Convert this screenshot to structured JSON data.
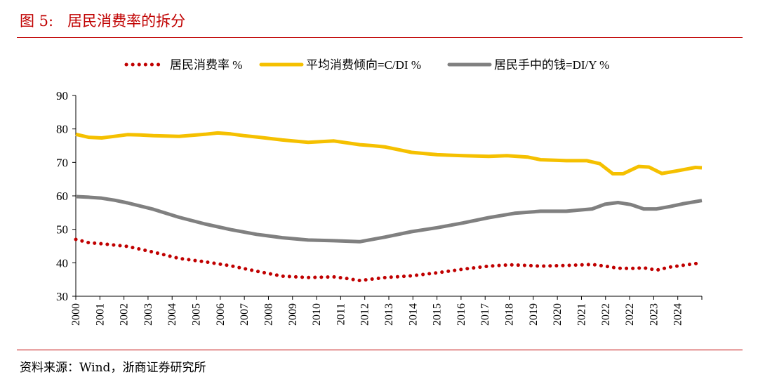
{
  "figure": {
    "title": "图 5:   居民消费率的拆分",
    "source": "资料来源：Wind，浙商证券研究所"
  },
  "chart_data": {
    "type": "line",
    "title": "",
    "xlabel": "",
    "ylabel": "",
    "ylim": [
      30,
      90
    ],
    "yticks": [
      30,
      40,
      50,
      60,
      70,
      80,
      90
    ],
    "xlim": [
      2000,
      2024.25
    ],
    "xticks": [
      "2000",
      "2001",
      "2002",
      "2003",
      "2004",
      "2005",
      "2006",
      "2007",
      "2008",
      "2009",
      "2010",
      "2011",
      "2012",
      "2013",
      "2014",
      "2015",
      "2016",
      "2017",
      "2018",
      "2019",
      "2020",
      "2021",
      "2022",
      "2022",
      "2023",
      "2024"
    ],
    "grid": false,
    "legend_position": "top",
    "series": [
      {
        "name": "居民消费率 %",
        "color": "#c00000",
        "style": "dotted",
        "x": [
          2000,
          2000.5,
          2001,
          2001.5,
          2002,
          2003,
          2004,
          2005,
          2006,
          2007,
          2008,
          2009,
          2010,
          2010.5,
          2011,
          2012,
          2013,
          2014,
          2015,
          2016,
          2016.8,
          2017.5,
          2018,
          2019,
          2020,
          2020.5,
          2021,
          2021.5,
          2022,
          2022.5,
          2023,
          2024.25
        ],
        "y": [
          47,
          46,
          45.7,
          45.3,
          44.9,
          43.2,
          41.3,
          40.3,
          39.1,
          37.5,
          36,
          35.6,
          35.8,
          35.3,
          34.7,
          35.6,
          36.1,
          37,
          38.1,
          39,
          39.4,
          39.2,
          39,
          39.2,
          39.5,
          39,
          38.4,
          38.3,
          38.5,
          37.8,
          38.7,
          40
        ]
      },
      {
        "name": "平均消费倾向=C/DI %",
        "color": "#f5c000",
        "style": "solid",
        "x": [
          2000,
          2000.5,
          2001,
          2001.5,
          2002,
          2002.5,
          2003,
          2004,
          2005,
          2005.5,
          2006,
          2006.5,
          2007,
          2008,
          2009,
          2010,
          2011,
          2011.5,
          2012,
          2013,
          2014,
          2015,
          2016,
          2016.7,
          2017.5,
          2018,
          2019,
          2019.8,
          2020.3,
          2020.8,
          2021.2,
          2021.8,
          2022.2,
          2022.7,
          2023.3,
          2024,
          2024.25
        ],
        "y": [
          78.4,
          77.5,
          77.3,
          77.8,
          78.3,
          78.2,
          78,
          77.8,
          78.4,
          78.8,
          78.5,
          78,
          77.6,
          76.7,
          76,
          76.4,
          75.3,
          75,
          74.6,
          73,
          72.3,
          72,
          71.8,
          72,
          71.6,
          70.8,
          70.5,
          70.5,
          69.6,
          66.6,
          66.6,
          68.8,
          68.6,
          66.7,
          67.5,
          68.5,
          68.4
        ]
      },
      {
        "name": "居民手中的钱=DI/Y %",
        "color": "#808080",
        "style": "solid",
        "x": [
          2000,
          2000.5,
          2001,
          2001.5,
          2002,
          2003,
          2004,
          2005,
          2006,
          2007,
          2008,
          2009,
          2010,
          2011,
          2012,
          2013,
          2014,
          2015,
          2016,
          2017,
          2018,
          2019,
          2020,
          2020.5,
          2021,
          2021.5,
          2022,
          2022.5,
          2023,
          2023.5,
          2024.25
        ],
        "y": [
          59.8,
          59.6,
          59.3,
          58.7,
          57.9,
          56,
          53.6,
          51.6,
          49.9,
          48.5,
          47.5,
          46.8,
          46.6,
          46.3,
          47.7,
          49.3,
          50.5,
          51.9,
          53.5,
          54.8,
          55.4,
          55.4,
          56.1,
          57.5,
          58,
          57.4,
          56.1,
          56.1,
          56.8,
          57.6,
          58.6
        ]
      }
    ]
  }
}
